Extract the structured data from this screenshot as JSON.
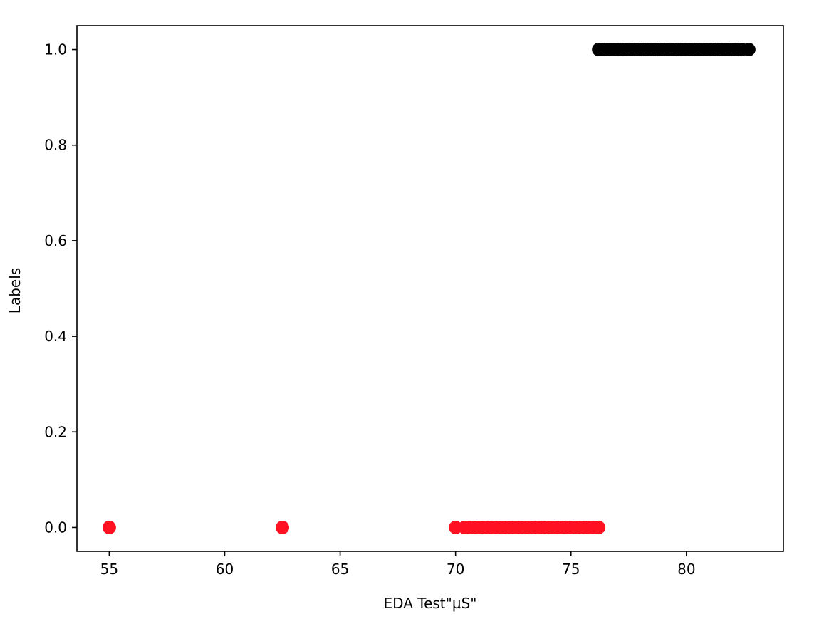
{
  "chart_data": {
    "type": "scatter",
    "title": "",
    "xlabel": "EDA Test\"µS\"",
    "ylabel": "Labels",
    "xlim": [
      53.6,
      84.2
    ],
    "ylim": [
      -0.05,
      1.05
    ],
    "grid": false,
    "x_ticks": [
      55,
      60,
      65,
      70,
      75,
      80
    ],
    "x_tick_labels": [
      "55",
      "60",
      "65",
      "70",
      "75",
      "80"
    ],
    "y_ticks": [
      0.0,
      0.2,
      0.4,
      0.6,
      0.8,
      1.0
    ],
    "y_tick_labels": [
      "0.0",
      "0.2",
      "0.4",
      "0.6",
      "0.8",
      "1.0"
    ],
    "series": [
      {
        "color": "#ff1122",
        "y": 0,
        "x": [
          55.0,
          62.5,
          70.0,
          70.4,
          70.6,
          70.8,
          71.0,
          71.2,
          71.4,
          71.6,
          71.8,
          72.0,
          72.2,
          72.4,
          72.6,
          72.8,
          73.0,
          73.2,
          73.4,
          73.6,
          73.8,
          74.0,
          74.2,
          74.4,
          74.6,
          74.8,
          75.0,
          75.2,
          75.4,
          75.6,
          75.8,
          76.0,
          76.2
        ]
      },
      {
        "color": "#000000",
        "y": 1,
        "x": [
          76.2,
          76.4,
          76.6,
          76.8,
          77.0,
          77.2,
          77.4,
          77.6,
          77.8,
          78.0,
          78.2,
          78.4,
          78.6,
          78.8,
          79.0,
          79.2,
          79.4,
          79.6,
          79.8,
          80.0,
          80.2,
          80.4,
          80.6,
          80.8,
          81.0,
          81.2,
          81.4,
          81.6,
          81.8,
          82.0,
          82.2,
          82.4,
          82.7
        ]
      }
    ]
  }
}
